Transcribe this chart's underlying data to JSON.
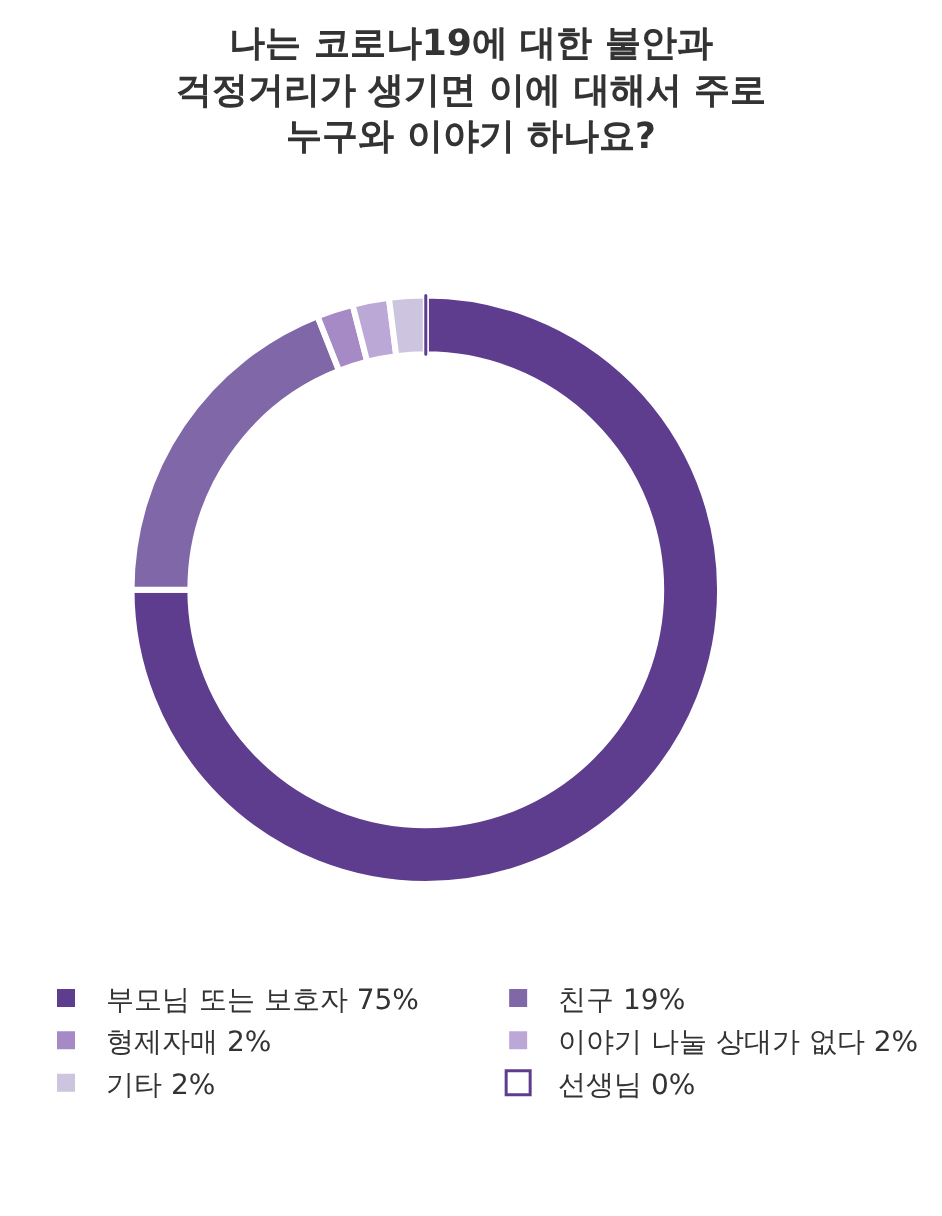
{
  "chart_data": {
    "type": "donut",
    "title": "나는 코로나19에 대한 불안과\n걱정거리가 생기면 이에 대해서 주로\n누구와 이야기 하나요?",
    "categories": [
      "부모님 또는 보호자 75%",
      "친구 19%",
      "형제자매 2%",
      "이야기 나눌 상대가 없다 2%",
      "기타 2%",
      "선생님 0%"
    ],
    "values": [
      75,
      19,
      2,
      2,
      2,
      0
    ],
    "colors": [
      "#5e3c8e",
      "#8068a8",
      "#a68ac6",
      "#bca8d6",
      "#cdc5df",
      "#ffffff"
    ],
    "legend": "bottom"
  }
}
